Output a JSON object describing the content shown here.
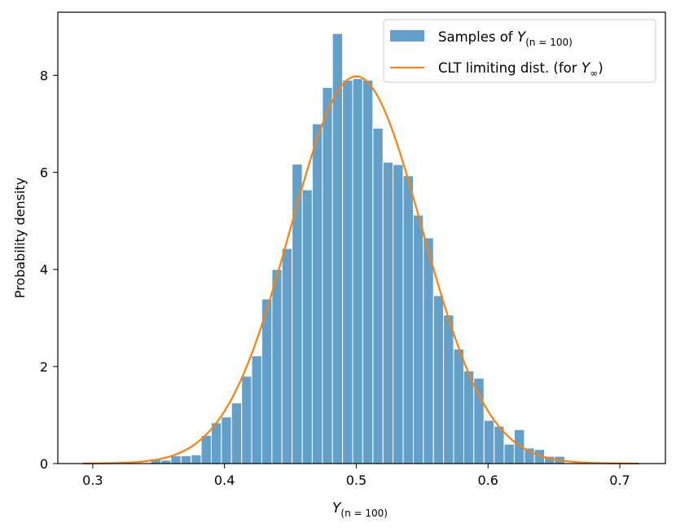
{
  "chart_data": {
    "type": "bar",
    "ylabel": "Probability density",
    "xlabel": {
      "base": "Y",
      "sub": "(n = 100)"
    },
    "xlim": [
      0.2735,
      0.7346
    ],
    "ylim": [
      0,
      9.3
    ],
    "xticks": [
      0.3,
      0.4,
      0.5,
      0.6,
      0.7
    ],
    "xtick_labels": [
      "0.3",
      "0.4",
      "0.5",
      "0.6",
      "0.7"
    ],
    "yticks": [
      0,
      2,
      4,
      6,
      8
    ],
    "ytick_labels": [
      "0",
      "2",
      "4",
      "6",
      "8"
    ],
    "grid": false,
    "legend_position": "top-right",
    "histogram": {
      "name": "Samples of Y(n=100)",
      "color": "#1f77b4",
      "alpha": 0.7,
      "bin_edges": [
        0.344,
        0.3517,
        0.3593,
        0.367,
        0.3747,
        0.3823,
        0.39,
        0.3976,
        0.4053,
        0.413,
        0.4206,
        0.4283,
        0.436,
        0.4436,
        0.4513,
        0.459,
        0.4666,
        0.4743,
        0.4819,
        0.4896,
        0.4973,
        0.5049,
        0.5126,
        0.5203,
        0.5279,
        0.5356,
        0.5433,
        0.5509,
        0.5586,
        0.5662,
        0.5739,
        0.5816,
        0.5892,
        0.5969,
        0.6046,
        0.6122,
        0.6199,
        0.6276,
        0.6352,
        0.6429,
        0.6505,
        0.6582
      ],
      "densities": [
        0.08,
        0.07,
        0.16,
        0.16,
        0.18,
        0.58,
        0.84,
        0.96,
        1.25,
        1.8,
        2.22,
        3.39,
        4.0,
        4.43,
        6.17,
        5.64,
        7.0,
        7.75,
        8.86,
        7.9,
        7.93,
        7.9,
        6.91,
        6.21,
        6.16,
        5.93,
        5.12,
        4.65,
        3.46,
        3.06,
        2.36,
        1.91,
        1.76,
        0.89,
        0.77,
        0.4,
        0.7,
        0.32,
        0.29,
        0.15,
        0.15
      ]
    },
    "curve": {
      "name": "CLT limiting dist. (for Y∞)",
      "color": "#ff7f0e",
      "type": "line",
      "distribution": "normal",
      "mean": 0.5,
      "std": 0.05,
      "x_range": [
        0.2925,
        0.7145
      ]
    },
    "legend": [
      {
        "kind": "patch",
        "prefix": "Samples of ",
        "math": "Y",
        "sub": "(n = 100)",
        "suffix": ""
      },
      {
        "kind": "line",
        "prefix": "CLT limiting dist. (for ",
        "math": "Y",
        "sub": "∞",
        "suffix": ")"
      }
    ]
  }
}
